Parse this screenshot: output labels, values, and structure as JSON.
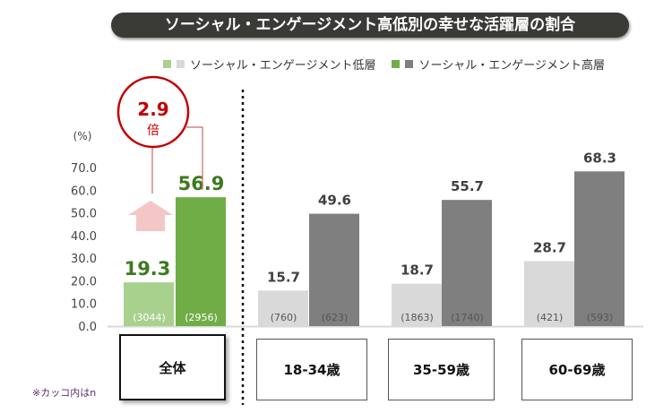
{
  "title": "ソーシャル・エンゲージメント高低別の幸せな活躍層の割合",
  "note": "※カッコ内はn",
  "multiplier": {
    "value": "2.9",
    "unit": "倍"
  },
  "colors": {
    "low_overall": "#a9d18e",
    "high_overall": "#70ad47",
    "low": "#d9d9d9",
    "high": "#7f7f7f",
    "highlight": "#c00000"
  },
  "chart_data": {
    "type": "bar",
    "title": "ソーシャル・エンゲージメント高低別の幸せな活躍層の割合",
    "ylabel": "(%)",
    "ylim": [
      0,
      70
    ],
    "yticks": [
      "0.0",
      "10.0",
      "20.0",
      "30.0",
      "40.0",
      "50.0",
      "60.0",
      "70.0"
    ],
    "categories": [
      "全体",
      "18-34歳",
      "35-59歳",
      "60-69歳"
    ],
    "legend": [
      "ソーシャル・エンゲージメント低層",
      "ソーシャル・エンゲージメント高層"
    ],
    "legend_position": "top",
    "series": [
      {
        "name": "ソーシャル・エンゲージメント低層",
        "values": [
          19.3,
          15.7,
          18.7,
          28.7
        ],
        "labels": [
          "19.3",
          "15.7",
          "18.7",
          "28.7"
        ],
        "n": [
          "(3044)",
          "(760)",
          "(1863)",
          "(421)"
        ]
      },
      {
        "name": "ソーシャル・エンゲージメント高層",
        "values": [
          56.9,
          49.6,
          55.7,
          68.3
        ],
        "labels": [
          "56.9",
          "49.6",
          "55.7",
          "68.3"
        ],
        "n": [
          "(2956)",
          "(623)",
          "(1740)",
          "(593)"
        ]
      }
    ]
  }
}
